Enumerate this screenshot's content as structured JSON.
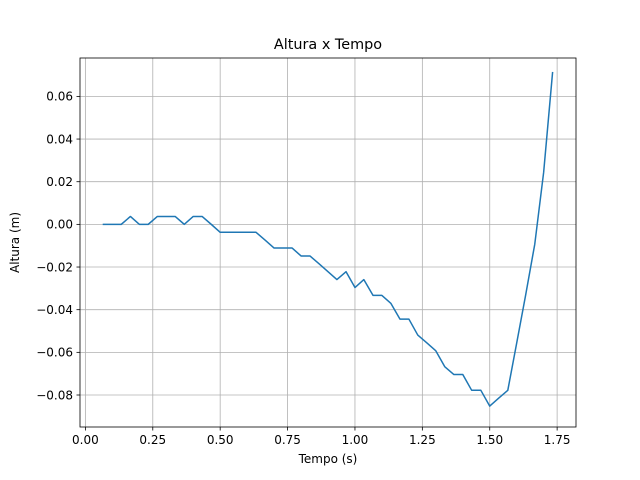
{
  "chart_data": {
    "type": "line",
    "title": "Altura x Tempo",
    "xlabel": "Tempo (s)",
    "ylabel": "Altura (m)",
    "xlim": [
      -0.02,
      1.82
    ],
    "ylim": [
      -0.095,
      0.078
    ],
    "grid": true,
    "xticks": [
      0.0,
      0.25,
      0.5,
      0.75,
      1.0,
      1.25,
      1.5,
      1.75
    ],
    "xtick_labels": [
      "0.00",
      "0.25",
      "0.50",
      "0.75",
      "1.00",
      "1.25",
      "1.50",
      "1.75"
    ],
    "yticks": [
      -0.08,
      -0.06,
      -0.04,
      -0.02,
      0.0,
      0.02,
      0.04,
      0.06
    ],
    "ytick_labels": [
      "−0.08",
      "−0.06",
      "−0.04",
      "−0.02",
      "0.00",
      "0.02",
      "0.04",
      "0.06"
    ],
    "series": [
      {
        "color": "#1f77b4",
        "x": [
          0.067,
          0.1,
          0.133,
          0.167,
          0.2,
          0.233,
          0.267,
          0.3,
          0.333,
          0.367,
          0.4,
          0.433,
          0.467,
          0.5,
          0.533,
          0.567,
          0.6,
          0.633,
          0.667,
          0.7,
          0.733,
          0.767,
          0.8,
          0.833,
          0.867,
          0.9,
          0.933,
          0.967,
          1.0,
          1.033,
          1.067,
          1.1,
          1.133,
          1.167,
          1.2,
          1.233,
          1.267,
          1.3,
          1.333,
          1.367,
          1.4,
          1.433,
          1.467,
          1.5,
          1.533,
          1.567,
          1.6,
          1.633,
          1.667,
          1.7,
          1.733
        ],
        "y": [
          0.0,
          0.0,
          0.0,
          0.0037,
          0.0,
          0.0,
          0.0037,
          0.0037,
          0.0037,
          0.0,
          0.0037,
          0.0037,
          0.0,
          -0.0037,
          -0.0037,
          -0.0037,
          -0.0037,
          -0.0037,
          -0.0074,
          -0.0111,
          -0.0111,
          -0.0111,
          -0.0148,
          -0.0148,
          -0.0185,
          -0.0222,
          -0.0259,
          -0.0222,
          -0.0296,
          -0.0259,
          -0.0333,
          -0.0333,
          -0.037,
          -0.0444,
          -0.0444,
          -0.0519,
          -0.0556,
          -0.0593,
          -0.0667,
          -0.0704,
          -0.0704,
          -0.0778,
          -0.0778,
          -0.0852,
          -0.0815,
          -0.0778,
          -0.0556,
          -0.0333,
          -0.0093,
          0.0244,
          0.0711
        ]
      }
    ]
  }
}
